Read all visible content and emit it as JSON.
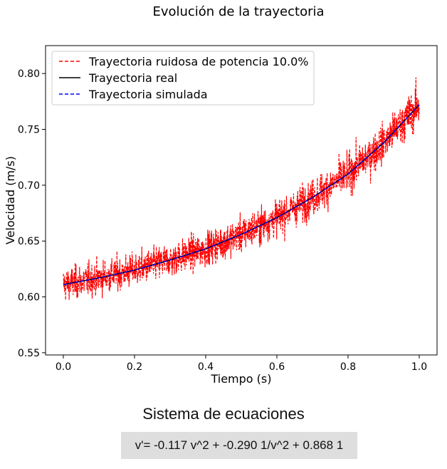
{
  "chart_data": {
    "type": "line",
    "title": "Evolución de la trayectoria",
    "xlabel": "Tiempo (s)",
    "ylabel": "Velocidad (m/s)",
    "xlim": [
      -0.05,
      1.05
    ],
    "ylim": [
      0.548,
      0.825
    ],
    "xticks": [
      0.0,
      0.2,
      0.4,
      0.6,
      0.8,
      1.0
    ],
    "xtick_labels": [
      "0.0",
      "0.2",
      "0.4",
      "0.6",
      "0.8",
      "1.0"
    ],
    "yticks": [
      0.55,
      0.6,
      0.65,
      0.7,
      0.75,
      0.8
    ],
    "ytick_labels": [
      "0.55",
      "0.60",
      "0.65",
      "0.70",
      "0.75",
      "0.80"
    ],
    "grid": false,
    "legend_position": "top-left",
    "series": [
      {
        "name": "Trayectoria ruidosa de potencia 10.0%",
        "color": "#ff0000",
        "style": "dashed",
        "noise_level": 0.1,
        "x": [
          0.0,
          0.1,
          0.2,
          0.3,
          0.4,
          0.5,
          0.6,
          0.7,
          0.8,
          0.9,
          1.0
        ],
        "y": [
          0.611,
          0.617,
          0.624,
          0.633,
          0.643,
          0.656,
          0.671,
          0.689,
          0.71,
          0.738,
          0.772
        ]
      },
      {
        "name": "Trayectoria real",
        "color": "#000000",
        "style": "solid",
        "x": [
          0.0,
          0.1,
          0.2,
          0.3,
          0.4,
          0.5,
          0.6,
          0.7,
          0.8,
          0.9,
          1.0
        ],
        "y": [
          0.611,
          0.617,
          0.624,
          0.633,
          0.643,
          0.656,
          0.671,
          0.689,
          0.71,
          0.738,
          0.772
        ]
      },
      {
        "name": "Trayectoria simulada",
        "color": "#0000ff",
        "style": "dashed",
        "x": [
          0.0,
          0.1,
          0.2,
          0.3,
          0.4,
          0.5,
          0.6,
          0.7,
          0.8,
          0.9,
          1.0
        ],
        "y": [
          0.611,
          0.617,
          0.624,
          0.633,
          0.643,
          0.656,
          0.671,
          0.689,
          0.71,
          0.738,
          0.772
        ]
      }
    ]
  },
  "equations": {
    "heading": "Sistema de ecuaciones",
    "text": "v'= -0.117 v^2 + -0.290 1/v^2 + 0.868 1"
  }
}
